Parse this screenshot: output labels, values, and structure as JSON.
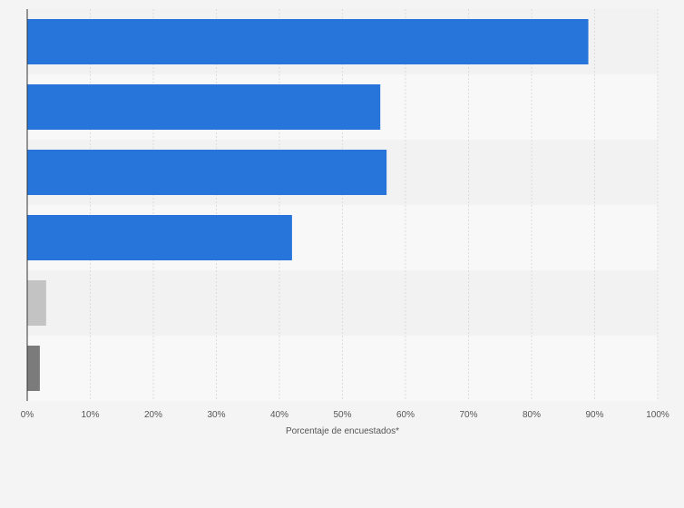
{
  "chart_data": {
    "type": "bar",
    "orientation": "horizontal",
    "categories": [
      "",
      "",
      "",
      "",
      "",
      ""
    ],
    "values": [
      89,
      56,
      57,
      42,
      3,
      2
    ],
    "bar_colors": [
      "#2775db",
      "#2775db",
      "#2775db",
      "#2775db",
      "#c3c3c3",
      "#7b7b7b"
    ],
    "xlabel": "Porcentaje de encuestados*",
    "ylabel": "",
    "xlim": [
      0,
      100
    ],
    "xticks": [
      "0%",
      "10%",
      "20%",
      "30%",
      "40%",
      "50%",
      "60%",
      "70%",
      "80%",
      "90%",
      "100%"
    ],
    "grid": true,
    "legend": "none"
  },
  "colors": {
    "background": "#f4f4f4",
    "band_dark": "#f2f2f2",
    "band_light": "#f8f8f8",
    "gridline": "#dcdcdc",
    "axis": "#333333"
  }
}
